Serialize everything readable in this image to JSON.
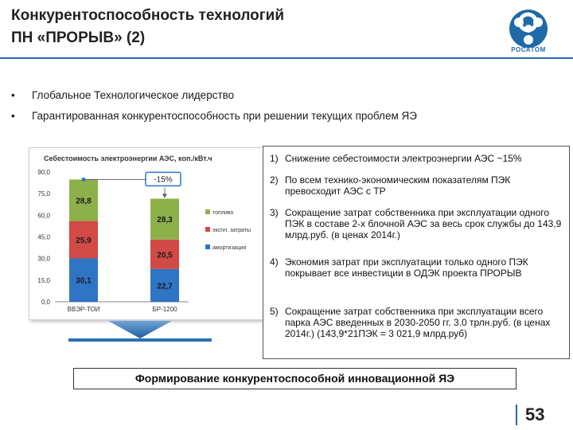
{
  "slide": {
    "title_line1": "Конкурентоспособность технологий",
    "title_line2": "ПН «ПРОРЫВ» (2)",
    "logo_text": "РОСАТОМ",
    "logo_icon": "rosatom-atom-icon",
    "page_number": "53",
    "colors": {
      "accent": "#1e6aa8"
    }
  },
  "bullets": [
    {
      "marker": "•",
      "text": "Глобальное Технологическое лидерство"
    },
    {
      "marker": "•",
      "text": "Гарантированная конкурентоспособность при решении текущих  проблем ЯЭ"
    }
  ],
  "chart_data": {
    "type": "bar",
    "stacked": true,
    "title": "Себестоимость электроэнергии АЭС, коп./кВт.ч",
    "categories": [
      "ВВЭР-ТОИ",
      "БР-1200"
    ],
    "series": [
      {
        "name": "амортизация",
        "values": [
          30.1,
          22.7
        ],
        "color": "#2e75c4"
      },
      {
        "name": "экспл. затраты",
        "values": [
          25.9,
          20.5
        ],
        "color": "#d24a46"
      },
      {
        "name": "топливо",
        "values": [
          28.8,
          28.3
        ],
        "color": "#8db04a"
      }
    ],
    "data_labels": [
      [
        "30,1",
        "25,9",
        "28,8"
      ],
      [
        "22,7",
        "20,5",
        "28,3"
      ]
    ],
    "ylim": [
      0,
      90
    ],
    "yticks": [
      "0,0",
      "15,0",
      "30,0",
      "45,0",
      "60,0",
      "75,0",
      "90,0"
    ],
    "ytick_values": [
      0,
      15,
      30,
      45,
      60,
      75,
      90
    ],
    "annotation": "-15%",
    "legend_position": "right",
    "grid": false
  },
  "advantages": [
    {
      "num": "1)",
      "text": "Снижение себестоимости электроэнергии АЭС ~15%"
    },
    {
      "num": "2)",
      "text": "По всем технико-экономическим показателям ПЭК превосходит АЭС с ТР"
    },
    {
      "num": "3)",
      "text": "Сокращение затрат собственника при эксплуатации одного  ПЭК в составе 2-х блочной АЭС за весь срок службы до 143,9  млрд.руб. (в ценах 2014г.)"
    },
    {
      "num": "4)",
      "text": "Экономия затрат при эксплуатации только одного ПЭК покрывает все инвестиции в ОДЭК проекта ПРОРЫВ"
    },
    {
      "num": "5)",
      "text": "Сокращение затрат собственника при эксплуатации всего парка АЭС введенных в 2030-2050 гг. 3.0 трлн.руб. (в ценах 2014г.) (143,9*21ПЭК = 3 021,9 млрд.руб)"
    }
  ],
  "banner": {
    "text": "Формирование конкурентоспособной инновационной  ЯЭ"
  }
}
